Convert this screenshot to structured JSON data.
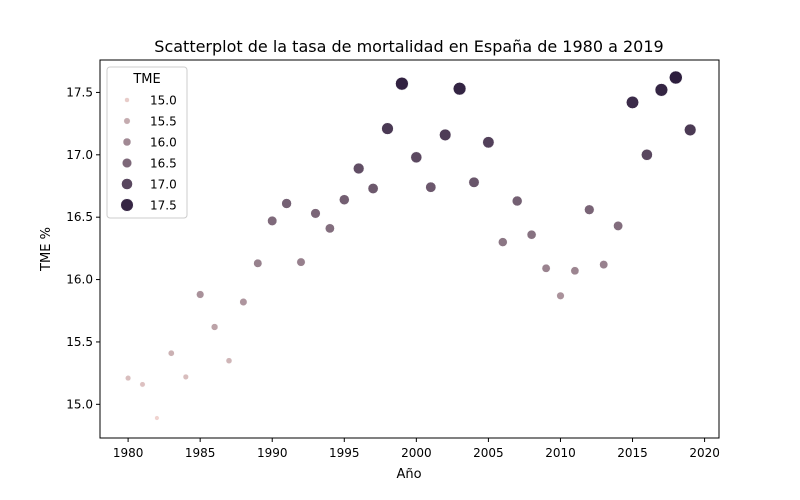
{
  "chart_data": {
    "type": "scatter",
    "title": "Scatterplot de la tasa de mortalidad en España de 1980 a 2019",
    "xlabel": "Año",
    "ylabel": "TME %",
    "xlim": [
      1978.05,
      2021.0
    ],
    "ylim": [
      14.73,
      17.76
    ],
    "xticks": [
      1980,
      1985,
      1990,
      1995,
      2000,
      2005,
      2010,
      2015,
      2020
    ],
    "yticks": [
      15.0,
      15.5,
      16.0,
      16.5,
      17.0,
      17.5
    ],
    "grid": false,
    "legend": {
      "title": "TME",
      "placement": "top-left",
      "entries": [
        15.0,
        15.5,
        16.0,
        16.5,
        17.0,
        17.5
      ]
    },
    "hue_range": [
      14.89,
      17.62
    ],
    "colors": {
      "low": "#f0d3cf",
      "high": "#2d1e3e",
      "axis": "#000000"
    },
    "x": [
      1980,
      1981,
      1982,
      1983,
      1984,
      1985,
      1986,
      1987,
      1988,
      1989,
      1990,
      1991,
      1992,
      1993,
      1994,
      1995,
      1996,
      1997,
      1998,
      1999,
      2000,
      2001,
      2002,
      2003,
      2004,
      2005,
      2006,
      2007,
      2008,
      2009,
      2010,
      2011,
      2012,
      2013,
      2014,
      2015,
      2016,
      2017,
      2018,
      2019
    ],
    "y": [
      15.21,
      15.16,
      14.89,
      15.41,
      15.22,
      15.88,
      15.62,
      15.35,
      15.82,
      16.13,
      16.47,
      16.61,
      16.14,
      16.53,
      16.41,
      16.64,
      16.89,
      16.73,
      17.21,
      17.57,
      16.98,
      16.74,
      17.16,
      17.53,
      16.78,
      17.1,
      16.3,
      16.63,
      16.36,
      16.09,
      15.87,
      16.07,
      16.56,
      16.12,
      16.43,
      17.42,
      17.0,
      17.52,
      17.62,
      17.2
    ]
  }
}
